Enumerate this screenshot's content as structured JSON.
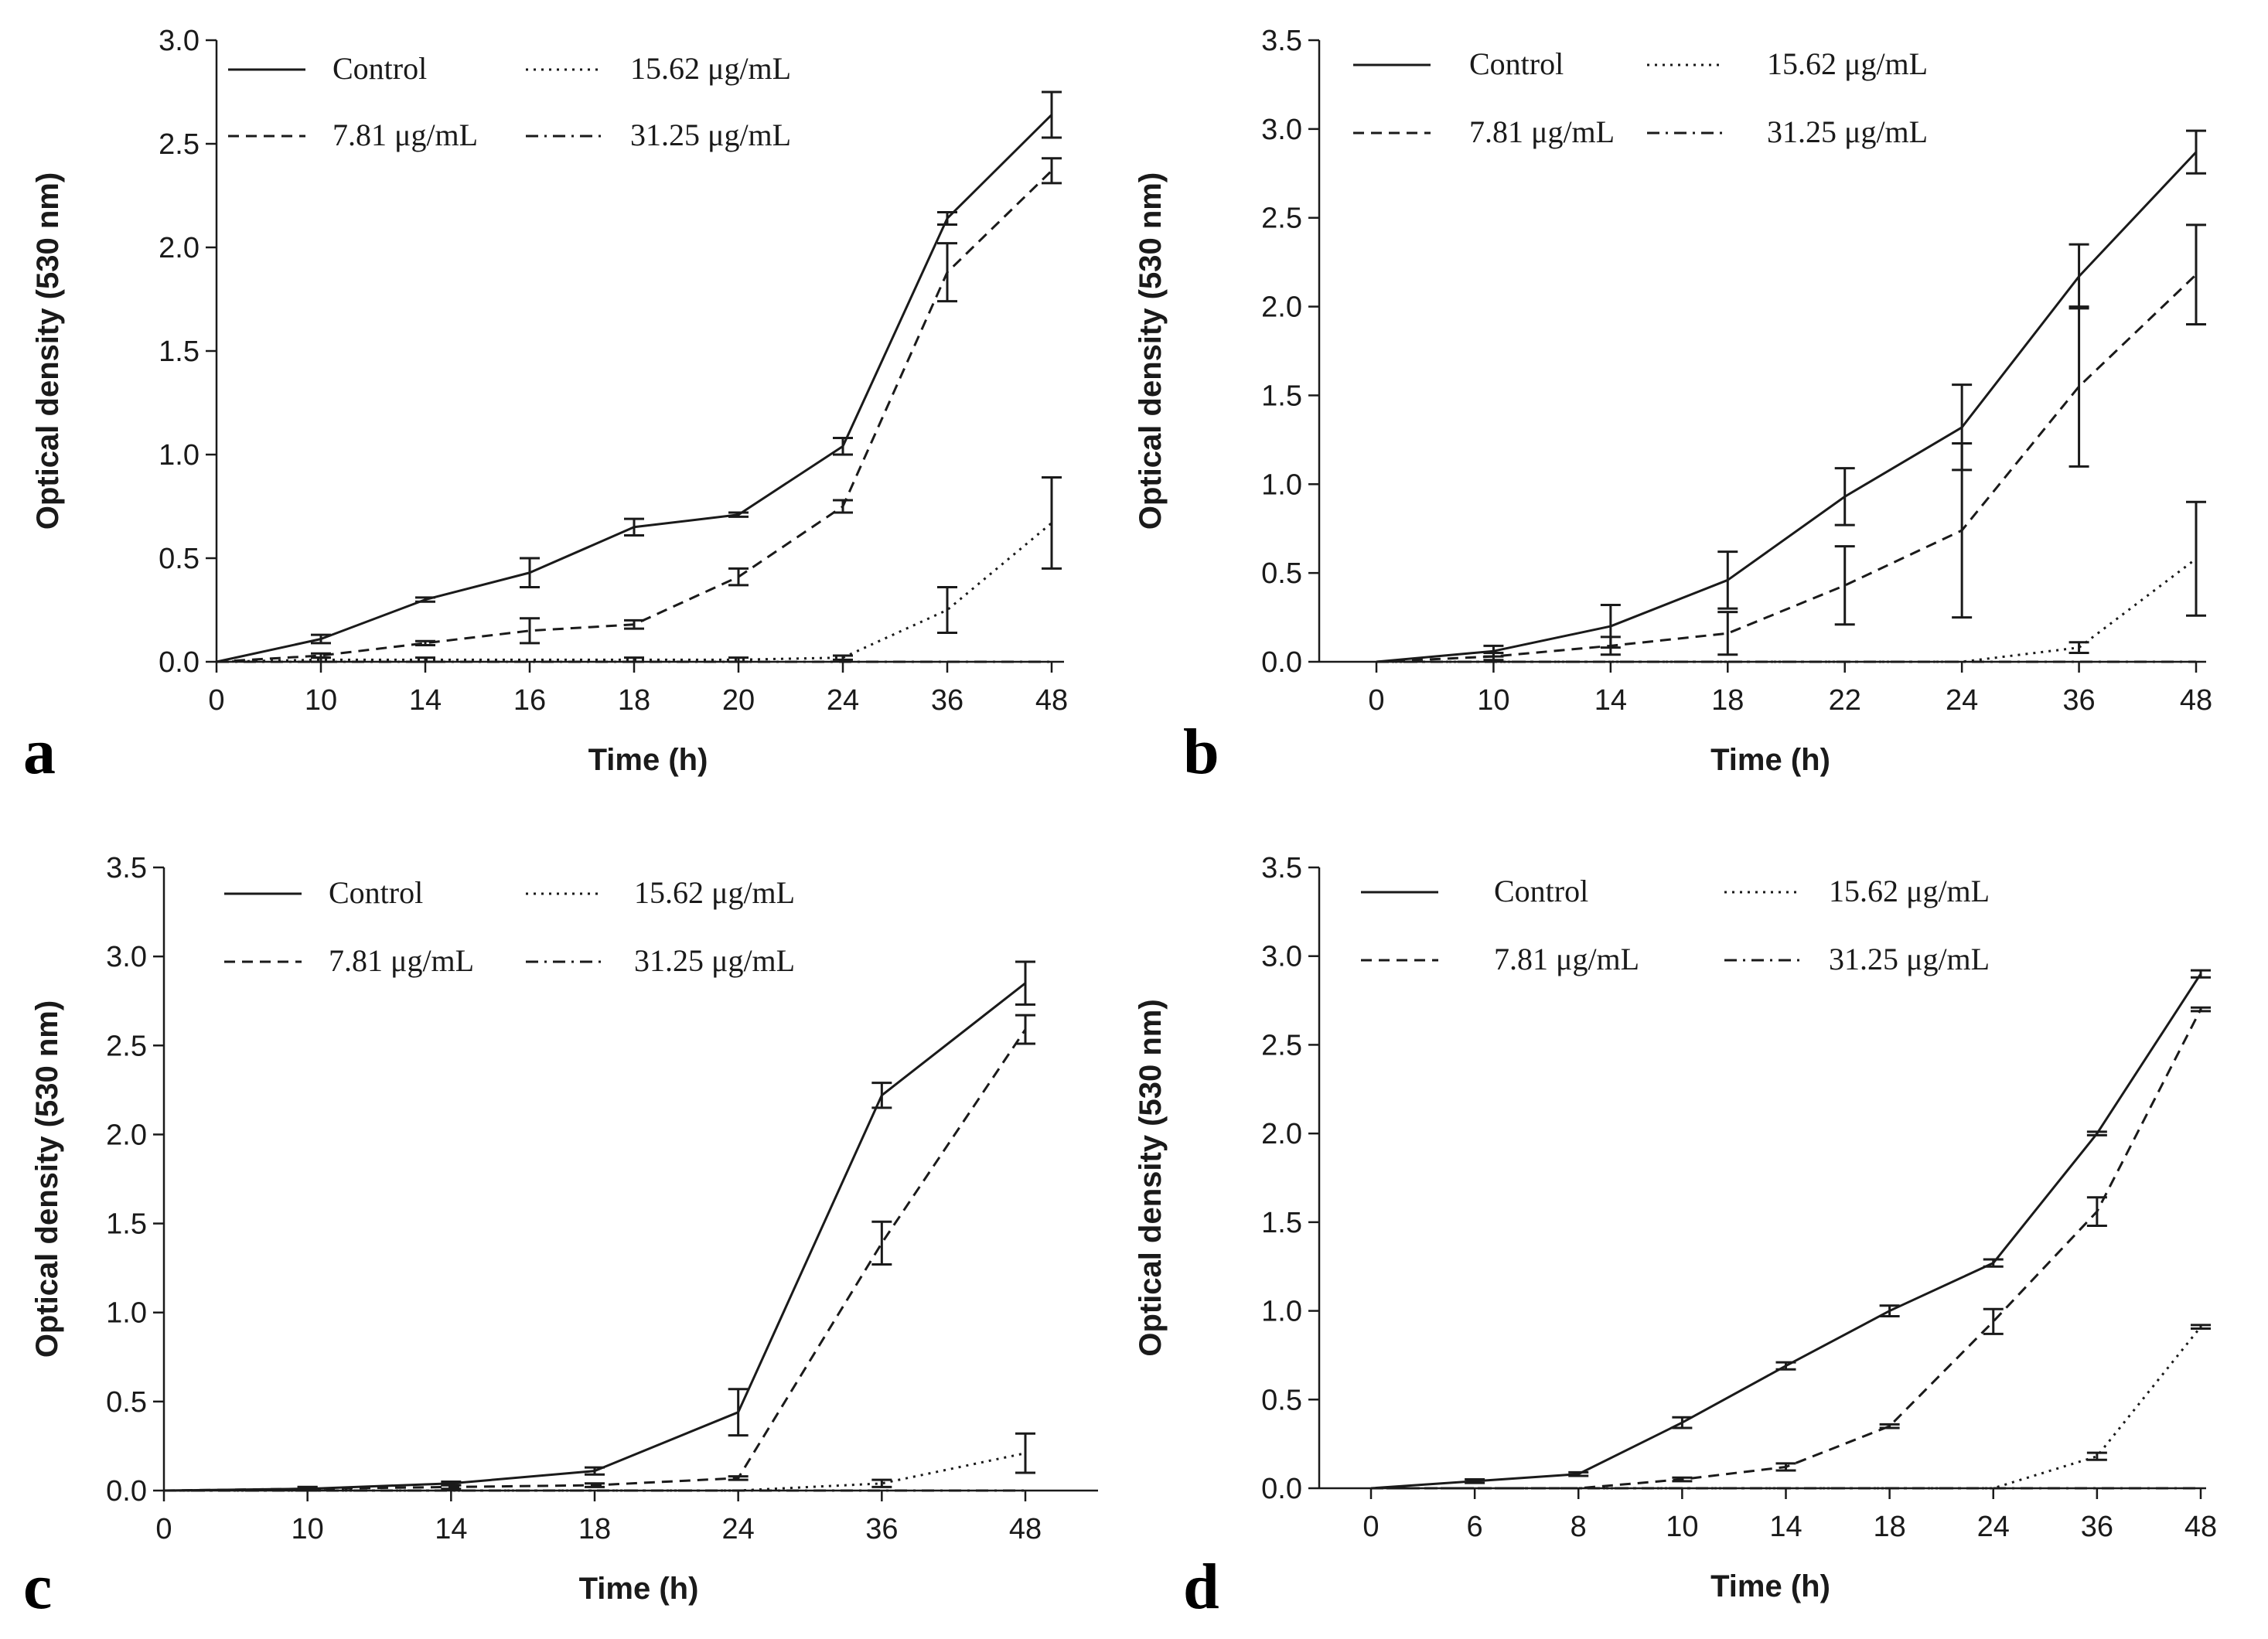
{
  "figure": {
    "colors": {
      "ink": "#1a1a1a",
      "background": "#ffffff"
    },
    "legend_entries": [
      "Control",
      "7.81 μg/mL",
      "15.62 μg/mL",
      "31.25 μg/mL"
    ]
  },
  "chart_data": [
    {
      "panel": "a",
      "type": "line",
      "xlabel": "Time (h)",
      "ylabel": "Optical density (530 nm)",
      "categories": [
        "0",
        "10",
        "14",
        "16",
        "18",
        "20",
        "24",
        "36",
        "48"
      ],
      "ylim": [
        0,
        3.0
      ],
      "yticks": [
        0.0,
        0.5,
        1.0,
        1.5,
        2.0,
        2.5,
        3.0
      ],
      "ytick_labels": [
        "0.0",
        "0.5",
        "1.0",
        "1.5",
        "2.0",
        "2.5",
        "3.0"
      ],
      "legend_position": "top-left",
      "series": [
        {
          "name": "Control",
          "style": "solid",
          "values": [
            0,
            0.11,
            0.3,
            0.43,
            0.65,
            0.71,
            1.04,
            2.14,
            2.64
          ],
          "errors": [
            0,
            0.02,
            0.01,
            0.07,
            0.04,
            0.01,
            0.04,
            0.03,
            0.11
          ]
        },
        {
          "name": "7.81 μg/mL",
          "style": "dashed",
          "values": [
            0,
            0.03,
            0.09,
            0.15,
            0.18,
            0.41,
            0.75,
            1.88,
            2.37
          ],
          "errors": [
            0,
            0.01,
            0.01,
            0.06,
            0.02,
            0.04,
            0.03,
            0.14,
            0.06
          ]
        },
        {
          "name": "15.62 μg/mL",
          "style": "dotted",
          "values": [
            0,
            0.01,
            0.01,
            0.01,
            0.01,
            0.01,
            0.02,
            0.25,
            0.67
          ],
          "errors": [
            0,
            0.01,
            0.01,
            0,
            0.01,
            0.01,
            0.01,
            0.11,
            0.22
          ]
        },
        {
          "name": "31.25 μg/mL",
          "style": "dashdot",
          "values": [
            0,
            0,
            0,
            0,
            0,
            0,
            0,
            0,
            0
          ],
          "errors": [
            0,
            0,
            0,
            0,
            0,
            0,
            0,
            0,
            0
          ]
        }
      ]
    },
    {
      "panel": "b",
      "type": "line",
      "xlabel": "Time (h)",
      "ylabel": "Optical density (530 nm)",
      "categories": [
        "0",
        "10",
        "14",
        "18",
        "22",
        "24",
        "36",
        "48"
      ],
      "ylim": [
        0,
        3.5
      ],
      "yticks": [
        0.0,
        0.5,
        1.0,
        1.5,
        2.0,
        2.5,
        3.0,
        3.5
      ],
      "ytick_labels": [
        "0.0",
        "0.5",
        "1.0",
        "1.5",
        "2.0",
        "2.5",
        "3.0",
        "3.5"
      ],
      "legend_position": "top-left",
      "series": [
        {
          "name": "Control",
          "style": "solid",
          "values": [
            0,
            0.06,
            0.2,
            0.46,
            0.93,
            1.32,
            2.17,
            2.87
          ],
          "errors": [
            0,
            0.03,
            0.12,
            0.16,
            0.16,
            0.24,
            0.18,
            0.12
          ]
        },
        {
          "name": "7.81 μg/mL",
          "style": "dashed",
          "values": [
            0,
            0.03,
            0.09,
            0.16,
            0.43,
            0.74,
            1.55,
            2.18
          ],
          "errors": [
            0,
            0.02,
            0.05,
            0.12,
            0.22,
            0.49,
            0.45,
            0.28
          ]
        },
        {
          "name": "15.62 μg/mL",
          "style": "dotted",
          "values": [
            0,
            0,
            0,
            0,
            0,
            0,
            0.08,
            0.58
          ],
          "errors": [
            0,
            0,
            0,
            0,
            0,
            0,
            0.03,
            0.32
          ]
        },
        {
          "name": "31.25 μg/mL",
          "style": "dashdot",
          "values": [
            0,
            0,
            0,
            0,
            0,
            0,
            0,
            0
          ],
          "errors": [
            0,
            0,
            0,
            0,
            0,
            0,
            0,
            0
          ]
        }
      ]
    },
    {
      "panel": "c",
      "type": "line",
      "xlabel": "Time (h)",
      "ylabel": "Optical density (530 nm)",
      "categories": [
        "0",
        "10",
        "14",
        "18",
        "24",
        "36",
        "48"
      ],
      "ylim": [
        0,
        3.5
      ],
      "yticks": [
        0.0,
        0.5,
        1.0,
        1.5,
        2.0,
        2.5,
        3.0,
        3.5
      ],
      "ytick_labels": [
        "0.0",
        "0.5",
        "1.0",
        "1.5",
        "2.0",
        "2.5",
        "3.0",
        "3.5"
      ],
      "legend_position": "top-center",
      "series": [
        {
          "name": "Control",
          "style": "solid",
          "values": [
            0,
            0.01,
            0.04,
            0.11,
            0.44,
            2.22,
            2.85
          ],
          "errors": [
            0,
            0.01,
            0.01,
            0.02,
            0.13,
            0.07,
            0.12
          ]
        },
        {
          "name": "7.81 μg/mL",
          "style": "dashed",
          "values": [
            0,
            0.01,
            0.02,
            0.03,
            0.07,
            1.39,
            2.59
          ],
          "errors": [
            0,
            0.01,
            0.01,
            0.01,
            0.01,
            0.12,
            0.08
          ]
        },
        {
          "name": "15.62 μg/mL",
          "style": "dotted",
          "values": [
            0,
            0,
            0,
            0,
            0,
            0.04,
            0.21
          ],
          "errors": [
            0,
            0,
            0,
            0,
            0,
            0.02,
            0.11
          ]
        },
        {
          "name": "31.25 μg/mL",
          "style": "dashdot",
          "values": [
            0,
            0,
            0,
            0,
            0,
            0,
            0
          ],
          "errors": [
            0,
            0,
            0,
            0,
            0,
            0,
            0
          ]
        }
      ]
    },
    {
      "panel": "d",
      "type": "line",
      "xlabel": "Time (h)",
      "ylabel": "Optical density (530 nm)",
      "categories": [
        "0",
        "6",
        "8",
        "10",
        "14",
        "18",
        "24",
        "36",
        "48"
      ],
      "ylim": [
        0,
        3.5
      ],
      "yticks": [
        0.0,
        0.5,
        1.0,
        1.5,
        2.0,
        2.5,
        3.0,
        3.5
      ],
      "ytick_labels": [
        "0.0",
        "0.5",
        "1.0",
        "1.5",
        "2.0",
        "2.5",
        "3.0",
        "3.5"
      ],
      "legend_position": "top-center",
      "series": [
        {
          "name": "Control",
          "style": "solid",
          "values": [
            0,
            0.04,
            0.08,
            0.37,
            0.69,
            1.0,
            1.27,
            2.0,
            2.9
          ],
          "errors": [
            0,
            0.01,
            0.01,
            0.03,
            0.02,
            0.03,
            0.02,
            0.01,
            0.02
          ]
        },
        {
          "name": "7.81 μg/mL",
          "style": "dashed",
          "values": [
            0,
            0,
            0,
            0.05,
            0.12,
            0.35,
            0.94,
            1.56,
            2.7
          ],
          "errors": [
            0,
            0,
            0,
            0.01,
            0.02,
            0.01,
            0.07,
            0.08,
            0.01
          ]
        },
        {
          "name": "15.62 μg/mL",
          "style": "dotted",
          "values": [
            0,
            0,
            0,
            0,
            0,
            0,
            0,
            0.18,
            0.91
          ],
          "errors": [
            0,
            0,
            0,
            0,
            0,
            0,
            0,
            0.02,
            0.01
          ]
        },
        {
          "name": "31.25 μg/mL",
          "style": "dashdot",
          "values": [
            0,
            0,
            0,
            0,
            0,
            0,
            0,
            0,
            0
          ],
          "errors": [
            0,
            0,
            0,
            0,
            0,
            0,
            0,
            0,
            0
          ]
        }
      ]
    }
  ]
}
